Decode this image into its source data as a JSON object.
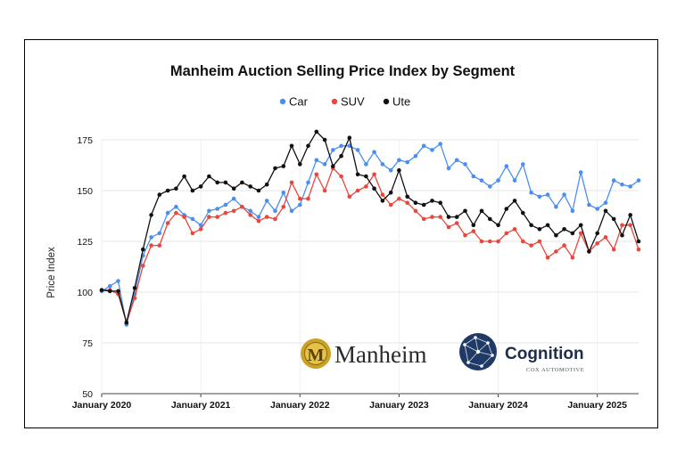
{
  "chart_data": {
    "type": "line",
    "title": "Manheim Auction Selling Price Index by Segment",
    "xlabel": "",
    "ylabel": "Price Index",
    "ylim": [
      50,
      175
    ],
    "yticks": [
      50,
      75,
      100,
      125,
      150,
      175
    ],
    "x_start": "January 2020",
    "x_tick_labels": [
      "January 2020",
      "January 2021",
      "January 2022",
      "January 2023",
      "January 2024",
      "January 2025"
    ],
    "legend_position": "top-center",
    "grid": true,
    "series": [
      {
        "name": "Car",
        "color": "#4a8ff0",
        "values": [
          100.5,
          103,
          105.5,
          84,
          99,
          118,
          127,
          129,
          139,
          142,
          138,
          136,
          133,
          140,
          141,
          143,
          146,
          142,
          140,
          137,
          145,
          140,
          149,
          140,
          143,
          154,
          165,
          163,
          170,
          172,
          172,
          170,
          163,
          169,
          163,
          160,
          165,
          164,
          167,
          172,
          170,
          173,
          161,
          165,
          163,
          157,
          155,
          152,
          155,
          162,
          155,
          163,
          149,
          147,
          148,
          142,
          148,
          140,
          159,
          143,
          141,
          144,
          155,
          153,
          152,
          155
        ]
      },
      {
        "name": "SUV",
        "color": "#e8473e",
        "values": [
          101,
          101,
          99,
          85,
          97,
          113,
          123,
          123,
          134,
          139,
          137,
          129,
          131,
          137,
          137,
          139,
          140,
          142,
          138,
          135,
          137,
          136,
          142,
          154,
          146,
          146,
          158,
          150,
          161,
          157,
          147,
          150,
          152,
          158,
          148,
          143,
          146,
          144,
          140,
          136,
          137,
          137,
          132,
          134,
          128,
          130,
          125,
          125,
          125,
          129,
          131,
          125,
          123,
          125,
          117,
          120,
          123,
          117,
          129,
          120,
          124,
          127,
          121,
          133,
          133,
          121
        ]
      },
      {
        "name": "Ute",
        "color": "#111111",
        "values": [
          101,
          100.5,
          100.5,
          85,
          102,
          121,
          138,
          148,
          150,
          151,
          157,
          150,
          152,
          157,
          154,
          154,
          151,
          154,
          152,
          150,
          153,
          161,
          162,
          172,
          163,
          172,
          179,
          175,
          162,
          167,
          176,
          158,
          157,
          151,
          145,
          149,
          160,
          147,
          144,
          143,
          145,
          144,
          137,
          137,
          140,
          133,
          140,
          136,
          133,
          141,
          145,
          139,
          133,
          131,
          133,
          128,
          131,
          129,
          133,
          120,
          129,
          140,
          136,
          128,
          138,
          125
        ]
      }
    ]
  },
  "logos": {
    "manheim_text": "Manheim",
    "cognition_text": "Cognition",
    "cognition_sub": "COX AUTOMOTIVE"
  }
}
